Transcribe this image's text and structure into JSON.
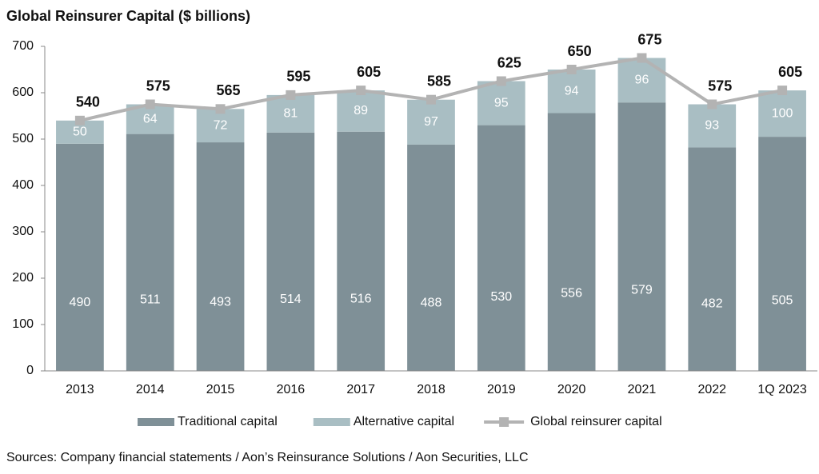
{
  "chart_data": {
    "type": "bar",
    "stacked": true,
    "title": "Global Reinsurer Capital ($ billions)",
    "categories": [
      "2013",
      "2014",
      "2015",
      "2016",
      "2017",
      "2018",
      "2019",
      "2020",
      "2021",
      "2022",
      "1Q 2023"
    ],
    "series": [
      {
        "name": "Traditional capital",
        "type": "bar",
        "color": "#7f9097",
        "values": [
          490,
          511,
          493,
          514,
          516,
          488,
          530,
          556,
          579,
          482,
          505
        ]
      },
      {
        "name": "Alternative capital",
        "type": "bar",
        "color": "#a9bec3",
        "values": [
          50,
          64,
          72,
          81,
          89,
          97,
          95,
          94,
          96,
          93,
          100
        ]
      },
      {
        "name": "Global reinsurer capital",
        "type": "line",
        "color": "#b3b3b3",
        "values": [
          540,
          575,
          565,
          595,
          605,
          585,
          625,
          650,
          675,
          575,
          605
        ]
      }
    ],
    "ylim": [
      0,
      700
    ],
    "yticks": [
      0,
      100,
      200,
      300,
      400,
      500,
      600,
      700
    ],
    "grid": false,
    "legend": "bottom",
    "source": "Sources: Company financial statements / Aon’s Reinsurance Solutions / Aon Securities, LLC"
  }
}
